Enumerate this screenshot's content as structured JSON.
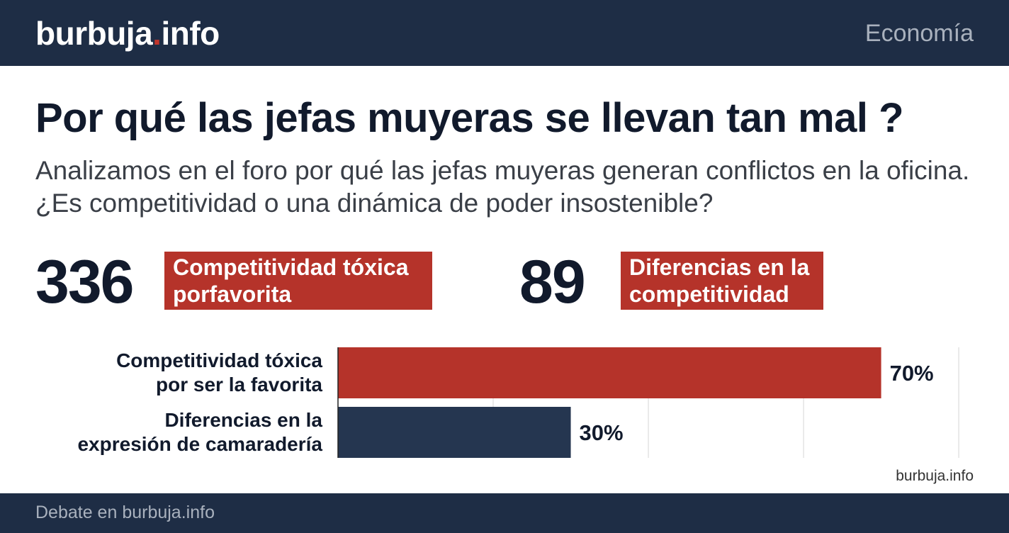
{
  "header": {
    "logo": [
      "burbuja",
      ".",
      "info"
    ],
    "section": "Economía"
  },
  "title": "Por qué las jefas muyeras se llevan tan mal ?",
  "subtitle": "Analizamos en el foro por qué las jefas muyeras generan conflictos en la oficina. ¿Es competitividad o una dinámica de poder insostenible?",
  "stats": [
    {
      "value": 336,
      "label": "Competitividad tóxica porfavorita"
    },
    {
      "value": 89,
      "label": "Diferencias en la competitividad"
    }
  ],
  "chart_data": {
    "type": "hbar",
    "categories": [
      "Competitividad tóxica por ser la favorita",
      "Diferencias en la expresión de camaradería"
    ],
    "values": [
      70,
      30
    ],
    "value_labels": [
      "70%",
      "30%"
    ],
    "colors": [
      "#b5332a",
      "#253650"
    ],
    "xlim": [
      0,
      82
    ],
    "xticks": [
      20,
      40,
      60,
      80
    ],
    "grid": true
  },
  "source": "burbuja.info",
  "footer": "Debate en burbuja.info"
}
